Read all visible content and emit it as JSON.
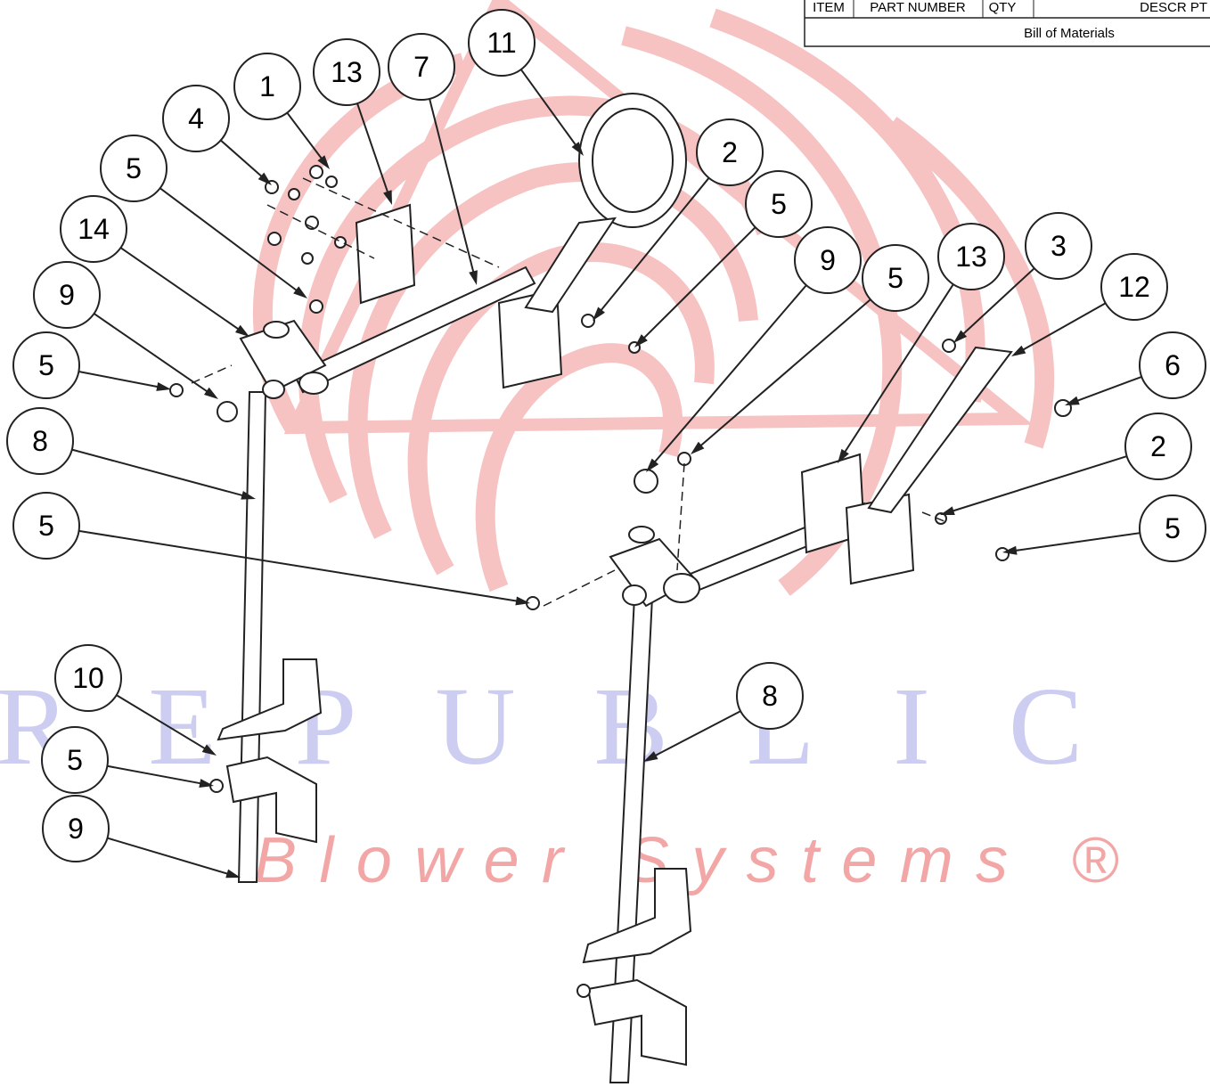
{
  "bom": {
    "headers": [
      "ITEM",
      "PART NUMBER",
      "QTY",
      "DESCR PT"
    ],
    "caption": "Bill of Materials"
  },
  "balloons": [
    "1",
    "13",
    "7",
    "11",
    "4",
    "5",
    "14",
    "9",
    "5",
    "8",
    "5",
    "2",
    "5",
    "9",
    "5",
    "13",
    "3",
    "12",
    "6",
    "2",
    "5",
    "10",
    "5",
    "9",
    "8"
  ],
  "watermark": {
    "brand": "REPUBLIC",
    "tagline": "Blower Systems ®"
  }
}
